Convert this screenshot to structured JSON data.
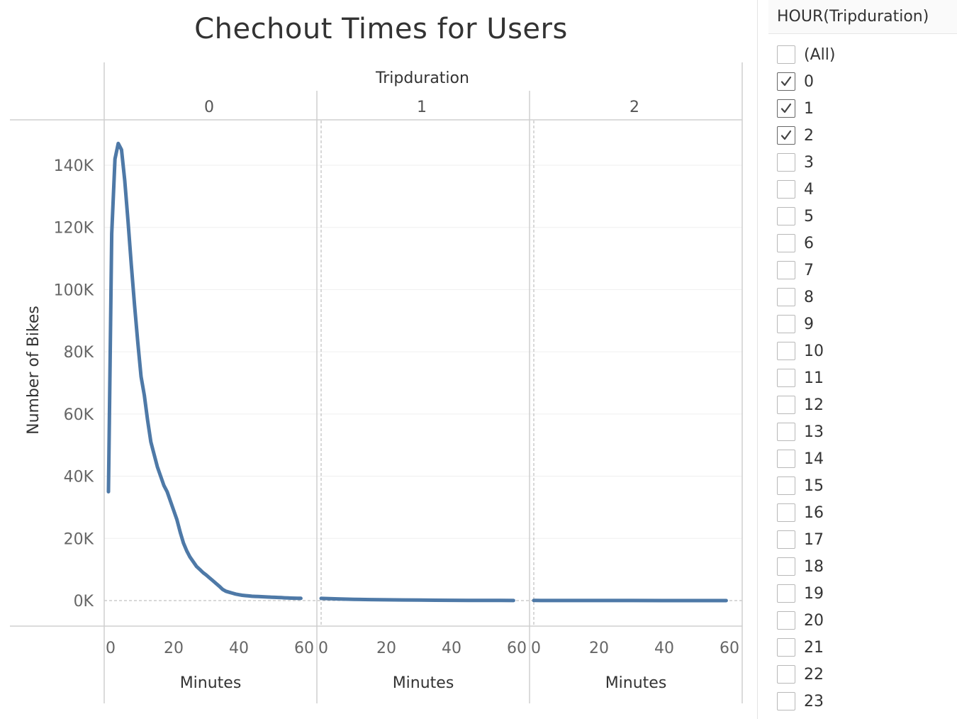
{
  "chart_data": {
    "type": "line",
    "title": "Chechout Times for Users",
    "column_header": "Tripduration",
    "panels": [
      "0",
      "1",
      "2"
    ],
    "xlabel": "Minutes",
    "ylabel": "Number of Bikes",
    "xlim": [
      0,
      60
    ],
    "ylim": [
      0,
      160000
    ],
    "x_ticks": [
      0,
      20,
      40,
      60
    ],
    "x_tick_labels": [
      "0",
      "20",
      "40",
      "60"
    ],
    "y_ticks": [
      0,
      20000,
      40000,
      60000,
      80000,
      100000,
      120000,
      140000
    ],
    "y_tick_labels": [
      "0K",
      "20K",
      "40K",
      "60K",
      "80K",
      "100K",
      "120K",
      "140K"
    ],
    "grid": true,
    "line_color": "#4e79a7",
    "series": [
      {
        "panel": "0",
        "x": [
          0,
          1,
          2,
          3,
          4,
          5,
          6,
          7,
          8,
          9,
          10,
          11,
          12,
          13,
          14,
          15,
          16,
          17,
          18,
          19,
          20,
          21,
          22,
          23,
          24,
          25,
          26,
          27,
          28,
          29,
          30,
          31,
          32,
          33,
          34,
          35,
          36,
          37,
          38,
          39,
          40,
          41,
          42,
          43,
          44,
          45,
          46,
          47,
          48,
          49,
          50,
          51,
          52,
          53,
          54,
          55,
          56,
          57,
          58,
          59
        ],
        "y": [
          35000,
          118000,
          142000,
          147000,
          145000,
          135000,
          122000,
          108000,
          95000,
          83000,
          72000,
          66000,
          58000,
          51000,
          47000,
          43000,
          40000,
          37000,
          35000,
          32000,
          29000,
          26000,
          22000,
          18500,
          16000,
          14000,
          12500,
          11000,
          10000,
          9000,
          8200,
          7300,
          6400,
          5500,
          4600,
          3600,
          3000,
          2700,
          2400,
          2100,
          1900,
          1700,
          1600,
          1500,
          1400,
          1350,
          1300,
          1250,
          1200,
          1150,
          1100,
          1050,
          1000,
          950,
          900,
          850,
          800,
          780,
          760,
          740
        ]
      },
      {
        "panel": "1",
        "x": [
          0,
          5,
          10,
          15,
          20,
          25,
          30,
          35,
          40,
          45,
          50,
          55,
          59
        ],
        "y": [
          700,
          550,
          420,
          330,
          260,
          200,
          160,
          120,
          90,
          70,
          50,
          35,
          25
        ]
      },
      {
        "panel": "2",
        "x": [
          0,
          10,
          20,
          30,
          40,
          50,
          59
        ],
        "y": [
          40,
          30,
          20,
          15,
          10,
          8,
          5
        ]
      }
    ]
  },
  "filter": {
    "title": "HOUR(Tripduration)",
    "items": [
      {
        "label": "(All)",
        "checked": false
      },
      {
        "label": "0",
        "checked": true
      },
      {
        "label": "1",
        "checked": true
      },
      {
        "label": "2",
        "checked": true
      },
      {
        "label": "3",
        "checked": false
      },
      {
        "label": "4",
        "checked": false
      },
      {
        "label": "5",
        "checked": false
      },
      {
        "label": "6",
        "checked": false
      },
      {
        "label": "7",
        "checked": false
      },
      {
        "label": "8",
        "checked": false
      },
      {
        "label": "9",
        "checked": false
      },
      {
        "label": "10",
        "checked": false
      },
      {
        "label": "11",
        "checked": false
      },
      {
        "label": "12",
        "checked": false
      },
      {
        "label": "13",
        "checked": false
      },
      {
        "label": "14",
        "checked": false
      },
      {
        "label": "15",
        "checked": false
      },
      {
        "label": "16",
        "checked": false
      },
      {
        "label": "17",
        "checked": false
      },
      {
        "label": "18",
        "checked": false
      },
      {
        "label": "19",
        "checked": false
      },
      {
        "label": "20",
        "checked": false
      },
      {
        "label": "21",
        "checked": false
      },
      {
        "label": "22",
        "checked": false
      },
      {
        "label": "23",
        "checked": false
      }
    ]
  }
}
